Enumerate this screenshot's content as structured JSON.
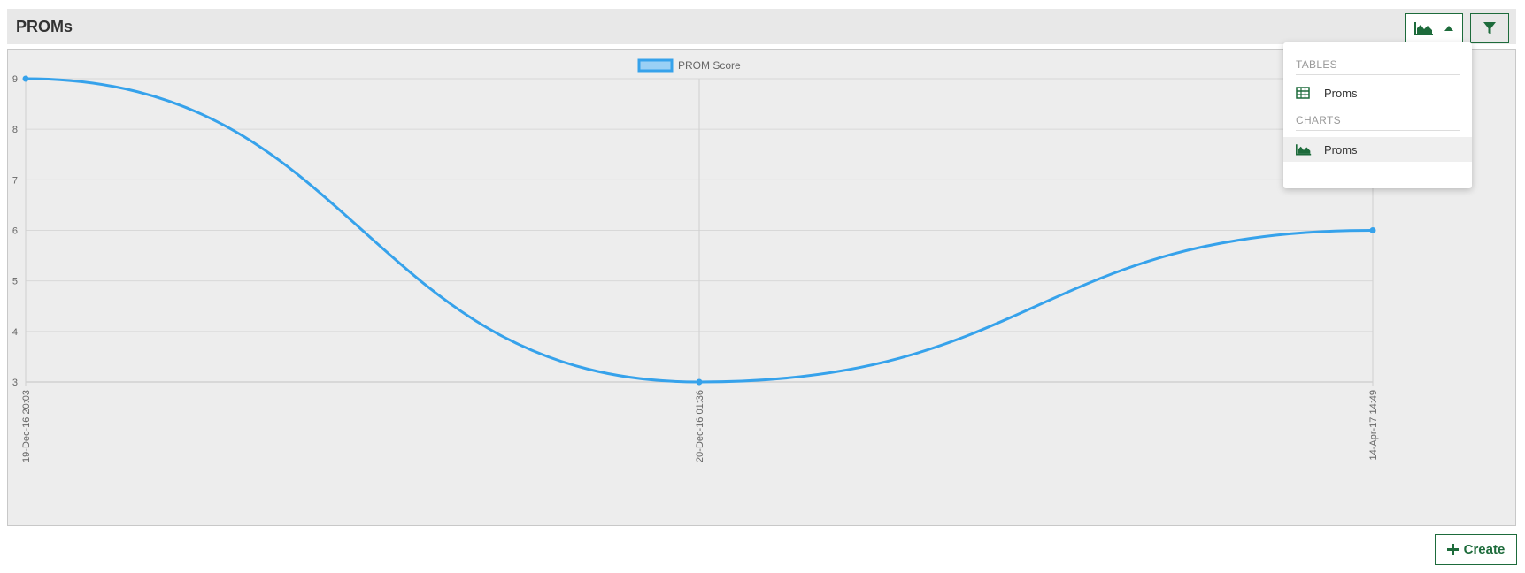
{
  "header": {
    "title": "PROMs"
  },
  "toolbar": {
    "view_icon": "area-chart-icon",
    "caret_icon": "caret-up-icon",
    "filter_icon": "filter-icon"
  },
  "menu": {
    "tables_heading": "TABLES",
    "tables_items": [
      {
        "label": "Proms",
        "icon": "table-icon"
      }
    ],
    "charts_heading": "CHARTS",
    "charts_items": [
      {
        "label": "Proms",
        "icon": "area-chart-icon"
      }
    ]
  },
  "chart_data": {
    "type": "line",
    "title": "",
    "xlabel": "",
    "ylabel": "",
    "categories": [
      "19-Dec-16 20:03",
      "20-Dec-16 01:36",
      "14-Apr-17 14:49"
    ],
    "series": [
      {
        "name": "PROM Score",
        "values": [
          9,
          3,
          6
        ]
      }
    ],
    "ylim": [
      3,
      9
    ],
    "yticks": [
      3,
      4,
      5,
      6,
      7,
      8,
      9
    ],
    "grid": true,
    "legend_position": "top-center",
    "line_color": "#36a2eb",
    "legend_fill": "#9ad0f5"
  },
  "actions": {
    "create_label": "Create",
    "create_icon": "plus-icon"
  },
  "colors": {
    "accent": "#1d6b3b",
    "series": "#36a2eb"
  }
}
